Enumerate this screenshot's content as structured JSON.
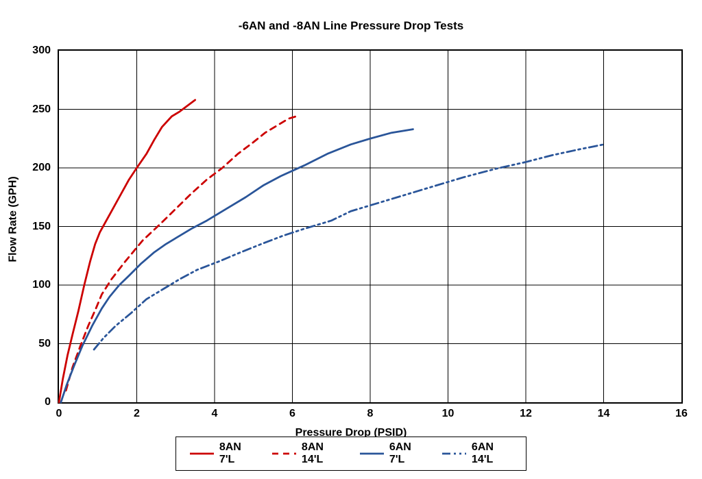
{
  "chart": {
    "type": "line",
    "title": "-6AN and -8AN Line Pressure Drop Tests",
    "xlabel": "Pressure Drop (PSID)",
    "ylabel": "Flow Rate (GPH)",
    "xlim": [
      0,
      16
    ],
    "ylim": [
      0,
      300
    ],
    "xticks": [
      0,
      2,
      4,
      6,
      8,
      10,
      12,
      14,
      16
    ],
    "yticks": [
      0,
      50,
      100,
      150,
      200,
      250,
      300
    ],
    "background_color": "#ffffff",
    "grid_color": "#000000",
    "grid_width": 1,
    "tick_fontsize": 16,
    "tick_fontweight": "bold",
    "title_fontsize": 17,
    "title_fontweight": "bold",
    "label_fontsize": 16,
    "label_fontweight": "bold",
    "line_width": 2.8,
    "series": [
      {
        "name": "8AN 7'L",
        "color": "#cc0000",
        "dash": "solid",
        "points": [
          [
            0.0,
            0
          ],
          [
            0.1,
            20
          ],
          [
            0.22,
            40
          ],
          [
            0.35,
            58
          ],
          [
            0.5,
            78
          ],
          [
            0.65,
            100
          ],
          [
            0.8,
            120
          ],
          [
            0.93,
            135
          ],
          [
            1.05,
            145
          ],
          [
            1.3,
            160
          ],
          [
            1.55,
            175
          ],
          [
            1.8,
            190
          ],
          [
            2.0,
            200
          ],
          [
            2.25,
            212
          ],
          [
            2.45,
            224
          ],
          [
            2.65,
            235
          ],
          [
            2.9,
            244
          ],
          [
            3.1,
            248
          ],
          [
            3.3,
            253
          ],
          [
            3.5,
            258
          ]
        ]
      },
      {
        "name": "8AN 14'L",
        "color": "#cc0000",
        "dash": "9 7",
        "points": [
          [
            0.18,
            10
          ],
          [
            0.35,
            30
          ],
          [
            0.55,
            48
          ],
          [
            0.75,
            65
          ],
          [
            0.95,
            80
          ],
          [
            1.1,
            92
          ],
          [
            1.35,
            105
          ],
          [
            1.7,
            120
          ],
          [
            1.95,
            130
          ],
          [
            2.15,
            138
          ],
          [
            2.6,
            152
          ],
          [
            3.0,
            165
          ],
          [
            3.4,
            178
          ],
          [
            3.8,
            190
          ],
          [
            4.2,
            200
          ],
          [
            4.6,
            212
          ],
          [
            5.0,
            222
          ],
          [
            5.3,
            230
          ],
          [
            5.6,
            236
          ],
          [
            5.9,
            242
          ],
          [
            6.1,
            244
          ]
        ]
      },
      {
        "name": "6AN 7'L",
        "color": "#2a5599",
        "dash": "solid",
        "points": [
          [
            0.05,
            0
          ],
          [
            0.2,
            15
          ],
          [
            0.4,
            32
          ],
          [
            0.6,
            48
          ],
          [
            0.85,
            65
          ],
          [
            1.1,
            80
          ],
          [
            1.3,
            90
          ],
          [
            1.55,
            100
          ],
          [
            1.8,
            108
          ],
          [
            2.1,
            118
          ],
          [
            2.45,
            128
          ],
          [
            2.75,
            135
          ],
          [
            3.0,
            140
          ],
          [
            3.4,
            148
          ],
          [
            3.8,
            155
          ],
          [
            4.3,
            165
          ],
          [
            4.8,
            175
          ],
          [
            5.25,
            185
          ],
          [
            5.7,
            193
          ],
          [
            6.3,
            202
          ],
          [
            6.9,
            212
          ],
          [
            7.5,
            220
          ],
          [
            8.0,
            225
          ],
          [
            8.55,
            230
          ],
          [
            9.1,
            233
          ]
        ]
      },
      {
        "name": "6AN 14'L",
        "color": "#2a5599",
        "dash": "12 5 3 5 3 5",
        "points": [
          [
            0.9,
            45
          ],
          [
            1.15,
            55
          ],
          [
            1.45,
            65
          ],
          [
            1.85,
            76
          ],
          [
            2.25,
            88
          ],
          [
            2.7,
            97
          ],
          [
            3.1,
            105
          ],
          [
            3.55,
            113
          ],
          [
            4.1,
            120
          ],
          [
            4.6,
            127
          ],
          [
            5.2,
            135
          ],
          [
            5.75,
            142
          ],
          [
            6.3,
            148
          ],
          [
            7.0,
            155
          ],
          [
            7.5,
            163
          ],
          [
            8.2,
            170
          ],
          [
            9.0,
            178
          ],
          [
            9.7,
            185
          ],
          [
            10.4,
            192
          ],
          [
            11.2,
            199
          ],
          [
            12.0,
            205
          ],
          [
            12.7,
            211
          ],
          [
            13.4,
            216
          ],
          [
            14.0,
            220
          ]
        ]
      }
    ],
    "legend": {
      "border_color": "#000000",
      "background": "#ffffff",
      "fontsize": 16,
      "fontweight": "bold",
      "swatch_width": 40
    }
  }
}
